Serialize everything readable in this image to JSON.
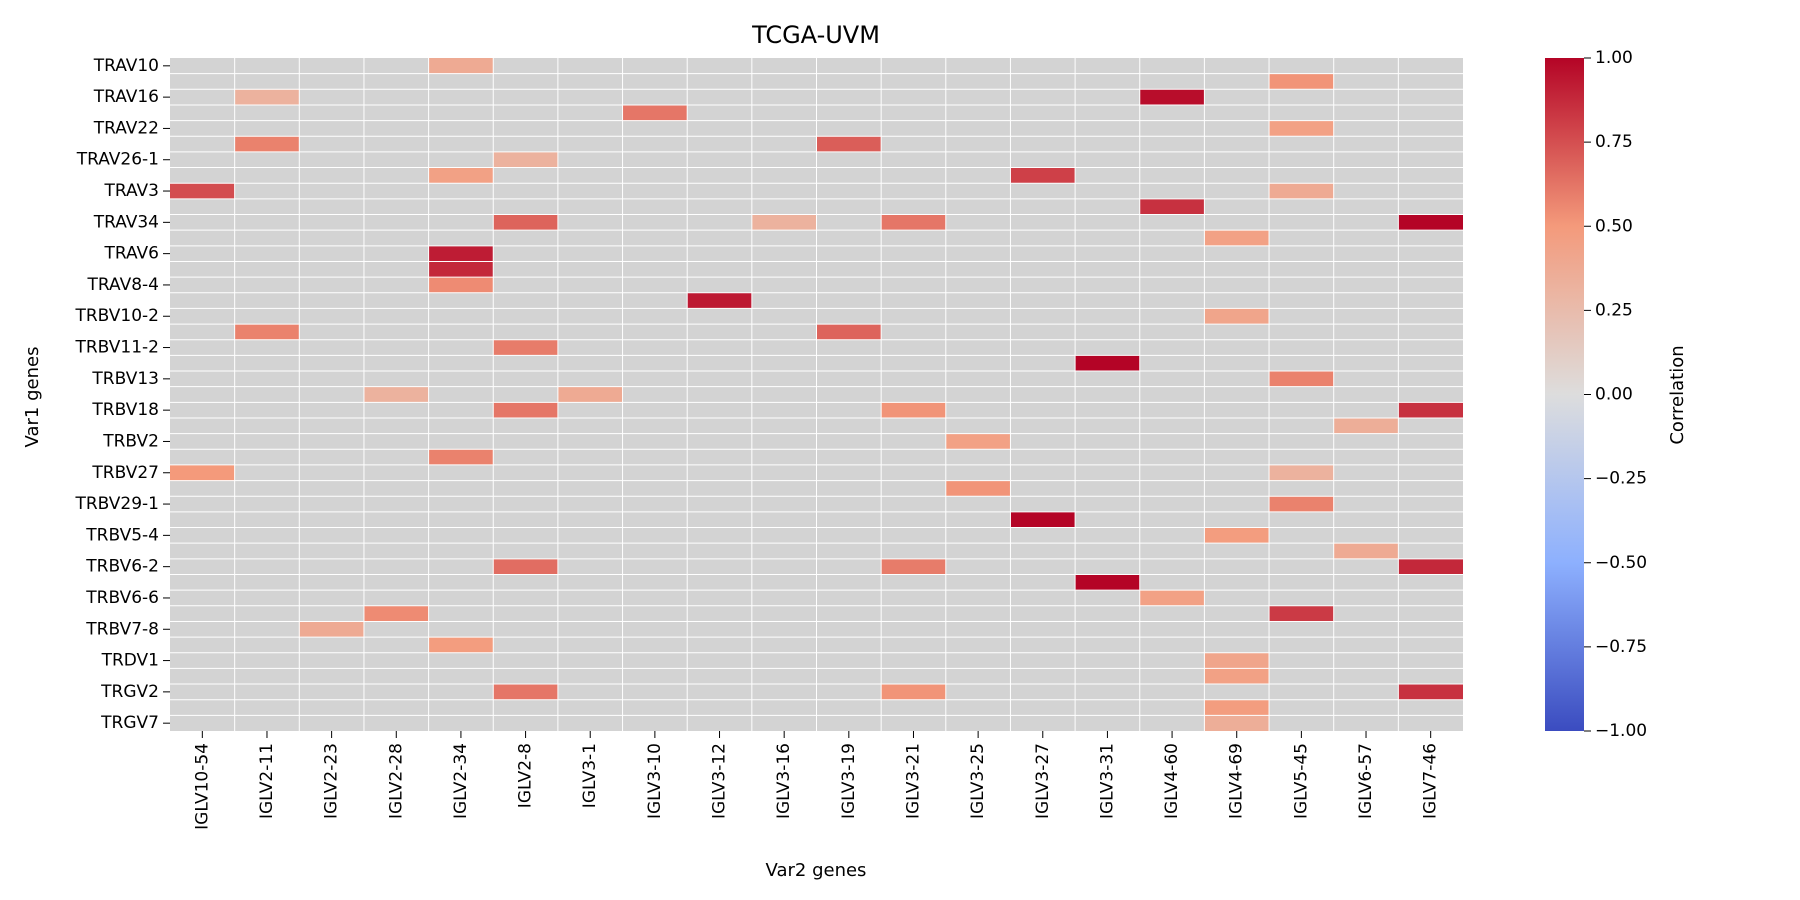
{
  "chart_data": {
    "type": "heatmap",
    "title": "TCGA-UVM",
    "xlabel": "Var2 genes",
    "ylabel": "Var1 genes",
    "colorbar_label": "Correlation",
    "colorbar_ticks": [
      "1.00",
      "0.75",
      "0.50",
      "0.25",
      "0.00",
      "−0.25",
      "−0.50",
      "−0.75",
      "−1.00"
    ],
    "colorbar_range": [
      -1,
      1
    ],
    "colormap": "coolwarm",
    "missing_color": "#d3d3d3",
    "x_categories": [
      "IGLV10-54",
      "IGLV2-11",
      "IGLV2-23",
      "IGLV2-28",
      "IGLV2-34",
      "IGLV2-8",
      "IGLV3-1",
      "IGLV3-10",
      "IGLV3-12",
      "IGLV3-16",
      "IGLV3-19",
      "IGLV3-21",
      "IGLV3-25",
      "IGLV3-27",
      "IGLV3-31",
      "IGLV4-60",
      "IGLV4-69",
      "IGLV5-45",
      "IGLV6-57",
      "IGLV7-46"
    ],
    "y_tick_labels": [
      "TRAV10",
      "TRAV16",
      "TRAV22",
      "TRAV26-1",
      "TRAV3",
      "TRAV34",
      "TRAV6",
      "TRAV8-4",
      "TRBV10-2",
      "TRBV11-2",
      "TRBV13",
      "TRBV18",
      "TRBV2",
      "TRBV27",
      "TRBV29-1",
      "TRBV5-4",
      "TRBV6-2",
      "TRBV6-6",
      "TRBV7-8",
      "TRDV1",
      "TRGV2",
      "TRGV7"
    ],
    "n_rows": 43,
    "cells": [
      {
        "row": 0,
        "col": 4,
        "value": 0.38
      },
      {
        "row": 2,
        "col": 1,
        "value": 0.32
      },
      {
        "row": 2,
        "col": 15,
        "value": 0.97
      },
      {
        "row": 1,
        "col": 17,
        "value": 0.52
      },
      {
        "row": 3,
        "col": 7,
        "value": 0.62
      },
      {
        "row": 4,
        "col": 17,
        "value": 0.45
      },
      {
        "row": 5,
        "col": 1,
        "value": 0.58
      },
      {
        "row": 5,
        "col": 10,
        "value": 0.7
      },
      {
        "row": 6,
        "col": 5,
        "value": 0.32
      },
      {
        "row": 7,
        "col": 4,
        "value": 0.45
      },
      {
        "row": 7,
        "col": 13,
        "value": 0.8
      },
      {
        "row": 8,
        "col": 0,
        "value": 0.76
      },
      {
        "row": 8,
        "col": 17,
        "value": 0.38
      },
      {
        "row": 9,
        "col": 15,
        "value": 0.85
      },
      {
        "row": 10,
        "col": 5,
        "value": 0.68
      },
      {
        "row": 10,
        "col": 9,
        "value": 0.32
      },
      {
        "row": 10,
        "col": 11,
        "value": 0.62
      },
      {
        "row": 10,
        "col": 19,
        "value": 1.0
      },
      {
        "row": 11,
        "col": 16,
        "value": 0.45
      },
      {
        "row": 12,
        "col": 4,
        "value": 0.92
      },
      {
        "row": 13,
        "col": 4,
        "value": 0.88
      },
      {
        "row": 14,
        "col": 4,
        "value": 0.55
      },
      {
        "row": 15,
        "col": 8,
        "value": 0.93
      },
      {
        "row": 16,
        "col": 16,
        "value": 0.42
      },
      {
        "row": 17,
        "col": 1,
        "value": 0.58
      },
      {
        "row": 17,
        "col": 10,
        "value": 0.68
      },
      {
        "row": 18,
        "col": 5,
        "value": 0.6
      },
      {
        "row": 19,
        "col": 14,
        "value": 1.0
      },
      {
        "row": 20,
        "col": 17,
        "value": 0.58
      },
      {
        "row": 21,
        "col": 3,
        "value": 0.32
      },
      {
        "row": 21,
        "col": 6,
        "value": 0.38
      },
      {
        "row": 22,
        "col": 5,
        "value": 0.62
      },
      {
        "row": 22,
        "col": 11,
        "value": 0.52
      },
      {
        "row": 22,
        "col": 19,
        "value": 0.85
      },
      {
        "row": 23,
        "col": 18,
        "value": 0.35
      },
      {
        "row": 24,
        "col": 12,
        "value": 0.45
      },
      {
        "row": 25,
        "col": 4,
        "value": 0.58
      },
      {
        "row": 26,
        "col": 0,
        "value": 0.5
      },
      {
        "row": 26,
        "col": 17,
        "value": 0.32
      },
      {
        "row": 27,
        "col": 12,
        "value": 0.52
      },
      {
        "row": 28,
        "col": 17,
        "value": 0.58
      },
      {
        "row": 29,
        "col": 13,
        "value": 1.0
      },
      {
        "row": 30,
        "col": 16,
        "value": 0.48
      },
      {
        "row": 31,
        "col": 18,
        "value": 0.38
      },
      {
        "row": 32,
        "col": 5,
        "value": 0.65
      },
      {
        "row": 32,
        "col": 11,
        "value": 0.6
      },
      {
        "row": 32,
        "col": 19,
        "value": 0.88
      },
      {
        "row": 33,
        "col": 14,
        "value": 1.0
      },
      {
        "row": 34,
        "col": 15,
        "value": 0.45
      },
      {
        "row": 35,
        "col": 3,
        "value": 0.55
      },
      {
        "row": 35,
        "col": 17,
        "value": 0.82
      },
      {
        "row": 36,
        "col": 2,
        "value": 0.38
      },
      {
        "row": 37,
        "col": 4,
        "value": 0.48
      },
      {
        "row": 38,
        "col": 16,
        "value": 0.42
      },
      {
        "row": 39,
        "col": 16,
        "value": 0.45
      },
      {
        "row": 40,
        "col": 5,
        "value": 0.62
      },
      {
        "row": 40,
        "col": 11,
        "value": 0.52
      },
      {
        "row": 40,
        "col": 19,
        "value": 0.85
      },
      {
        "row": 41,
        "col": 16,
        "value": 0.48
      },
      {
        "row": 42,
        "col": 16,
        "value": 0.35
      }
    ]
  }
}
